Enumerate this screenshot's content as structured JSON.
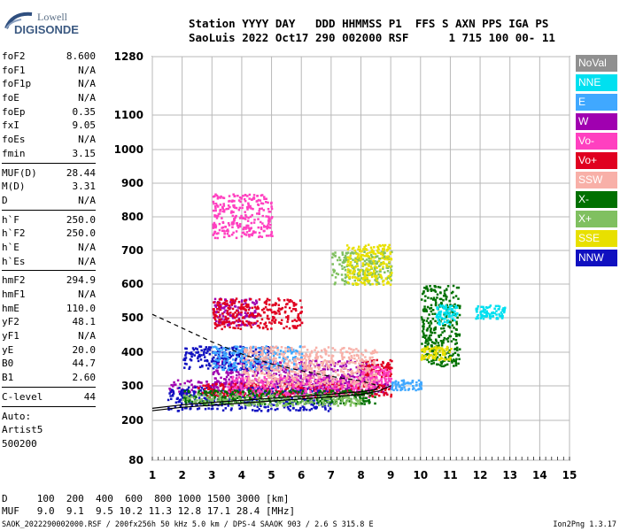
{
  "logo": {
    "line1": "Lowell",
    "line2": "DIGISONDE"
  },
  "header": {
    "labels": "Station YYYY DAY   DDD HHMMSS P1  FFS S AXN PPS IGA PS",
    "values": "SaoLuis 2022 Oct17 290 002000 RSF      1 715 100 00- 11"
  },
  "params": {
    "group1": [
      {
        "label": "foF2",
        "value": "8.600"
      },
      {
        "label": "foF1",
        "value": "N/A"
      },
      {
        "label": "foF1p",
        "value": "N/A"
      },
      {
        "label": "foE",
        "value": "N/A"
      },
      {
        "label": "foEp",
        "value": "0.35"
      },
      {
        "label": "fxI",
        "value": "9.05"
      },
      {
        "label": "foEs",
        "value": "N/A"
      },
      {
        "label": "fmin",
        "value": "3.15"
      }
    ],
    "group2": [
      {
        "label": "MUF(D)",
        "value": "28.44"
      },
      {
        "label": "M(D)",
        "value": "3.31"
      },
      {
        "label": "D",
        "value": "N/A"
      }
    ],
    "group3": [
      {
        "label": "h`F",
        "value": "250.0"
      },
      {
        "label": "h`F2",
        "value": "250.0"
      },
      {
        "label": "h`E",
        "value": "N/A"
      },
      {
        "label": "h`Es",
        "value": "N/A"
      }
    ],
    "group4": [
      {
        "label": "hmF2",
        "value": "294.9"
      },
      {
        "label": "hmF1",
        "value": "N/A"
      },
      {
        "label": "hmE",
        "value": "110.0"
      },
      {
        "label": "yF2",
        "value": "48.1"
      },
      {
        "label": "yF1",
        "value": "N/A"
      },
      {
        "label": "yE",
        "value": "20.0"
      },
      {
        "label": "B0",
        "value": "44.7"
      },
      {
        "label": "B1",
        "value": "2.60"
      }
    ],
    "group5": [
      {
        "label": "C-level",
        "value": "44"
      }
    ],
    "auto": [
      "Auto:",
      "Artist5",
      "500200"
    ]
  },
  "legend": [
    {
      "label": "NoVal",
      "color": "#909090"
    },
    {
      "label": "NNE",
      "color": "#00e0f0"
    },
    {
      "label": "E",
      "color": "#40a8ff"
    },
    {
      "label": "W",
      "color": "#a000b0"
    },
    {
      "label": "Vo-",
      "color": "#ff40c0"
    },
    {
      "label": "Vo+",
      "color": "#e00020"
    },
    {
      "label": "SSW",
      "color": "#f8b0a8"
    },
    {
      "label": "X-",
      "color": "#007000"
    },
    {
      "label": "X+",
      "color": "#80c060"
    },
    {
      "label": "SSE",
      "color": "#e8e000"
    },
    {
      "label": "NNW",
      "color": "#1010c0"
    }
  ],
  "footer": {
    "row_d": "D     100  200  400  600  800 1000 1500 3000 [km]",
    "row_muf": "MUF   9.0  9.1  9.5 10.2 11.3 12.8 17.1 28.4 [MHz]",
    "fileline": "SAOK_2022290002000.RSF / 200fx256h 50 kHz 5.0 km / DPS-4 SAAOK 903 / 2.6 S 315.8 E",
    "version": "Ion2Png 1.3.17"
  },
  "chart_data": {
    "type": "scatter",
    "title": "",
    "xlabel": "",
    "ylabel": "",
    "xlim": [
      1,
      15
    ],
    "ylim": [
      80,
      1280
    ],
    "y_scale": "nonlinear (virtual height)",
    "x_ticks": [
      1,
      2,
      3,
      4,
      5,
      6,
      7,
      8,
      9,
      10,
      11,
      12,
      13,
      14,
      15
    ],
    "y_ticks": [
      80,
      200,
      300,
      400,
      500,
      600,
      700,
      800,
      900,
      1000,
      1100,
      1280
    ],
    "grid": true,
    "legend_position": "right",
    "series": [
      {
        "name": "W",
        "color": "#a000b0",
        "clusters": [
          [
            1.5,
            9.0,
            280,
            320
          ],
          [
            3.0,
            8.5,
            300,
            380
          ],
          [
            3.0,
            4.5,
            480,
            560
          ]
        ]
      },
      {
        "name": "NNW",
        "color": "#1010c0",
        "clusters": [
          [
            1.5,
            7.0,
            230,
            300
          ],
          [
            2.0,
            5.0,
            350,
            420
          ]
        ]
      },
      {
        "name": "Vo+",
        "color": "#e00020",
        "clusters": [
          [
            2.5,
            9.0,
            270,
            310
          ],
          [
            3.0,
            6.0,
            470,
            560
          ],
          [
            8.0,
            9.0,
            330,
            380
          ]
        ]
      },
      {
        "name": "Vo-",
        "color": "#ff40c0",
        "clusters": [
          [
            3.5,
            8.5,
            270,
            330
          ],
          [
            8.0,
            9.0,
            310,
            360
          ],
          [
            3.0,
            5.0,
            740,
            870
          ]
        ]
      },
      {
        "name": "X-",
        "color": "#007000",
        "clusters": [
          [
            2.0,
            8.5,
            250,
            290
          ],
          [
            10.0,
            11.3,
            360,
            600
          ]
        ]
      },
      {
        "name": "X+",
        "color": "#80c060",
        "clusters": [
          [
            2.0,
            8.0,
            245,
            280
          ],
          [
            7.0,
            9.0,
            600,
            700
          ]
        ]
      },
      {
        "name": "NNE",
        "color": "#00e0f0",
        "clusters": [
          [
            11.8,
            12.8,
            500,
            540
          ],
          [
            10.5,
            11.2,
            480,
            540
          ]
        ]
      },
      {
        "name": "E",
        "color": "#40a8ff",
        "clusters": [
          [
            3.0,
            6.0,
            350,
            420
          ],
          [
            9.0,
            10.0,
            290,
            320
          ]
        ]
      },
      {
        "name": "SSE",
        "color": "#e8e000",
        "clusters": [
          [
            7.5,
            9.0,
            600,
            720
          ],
          [
            10.0,
            11.0,
            380,
            420
          ]
        ]
      },
      {
        "name": "SSW",
        "color": "#f8b0a8",
        "clusters": [
          [
            4.0,
            8.5,
            300,
            420
          ]
        ]
      }
    ],
    "curves": {
      "profile_solid": [
        [
          1.0,
          235
        ],
        [
          2.0,
          245
        ],
        [
          3.0,
          252
        ],
        [
          4.0,
          258
        ],
        [
          5.0,
          264
        ],
        [
          6.0,
          270
        ],
        [
          7.0,
          276
        ],
        [
          8.0,
          283
        ],
        [
          8.5,
          290
        ],
        [
          8.6,
          300
        ]
      ],
      "extraordinary_solid": [
        [
          1.0,
          228
        ],
        [
          2.0,
          238
        ],
        [
          3.0,
          244
        ],
        [
          4.0,
          250
        ],
        [
          5.0,
          256
        ],
        [
          6.0,
          262
        ],
        [
          7.0,
          268
        ],
        [
          8.0,
          275
        ],
        [
          8.6,
          285
        ],
        [
          9.0,
          300
        ]
      ],
      "profile_dashed": [
        [
          1.0,
          510
        ],
        [
          2.0,
          470
        ],
        [
          3.0,
          430
        ],
        [
          4.0,
          395
        ],
        [
          5.0,
          365
        ],
        [
          6.0,
          345
        ],
        [
          7.0,
          328
        ],
        [
          8.0,
          315
        ],
        [
          8.6,
          300
        ]
      ]
    }
  }
}
